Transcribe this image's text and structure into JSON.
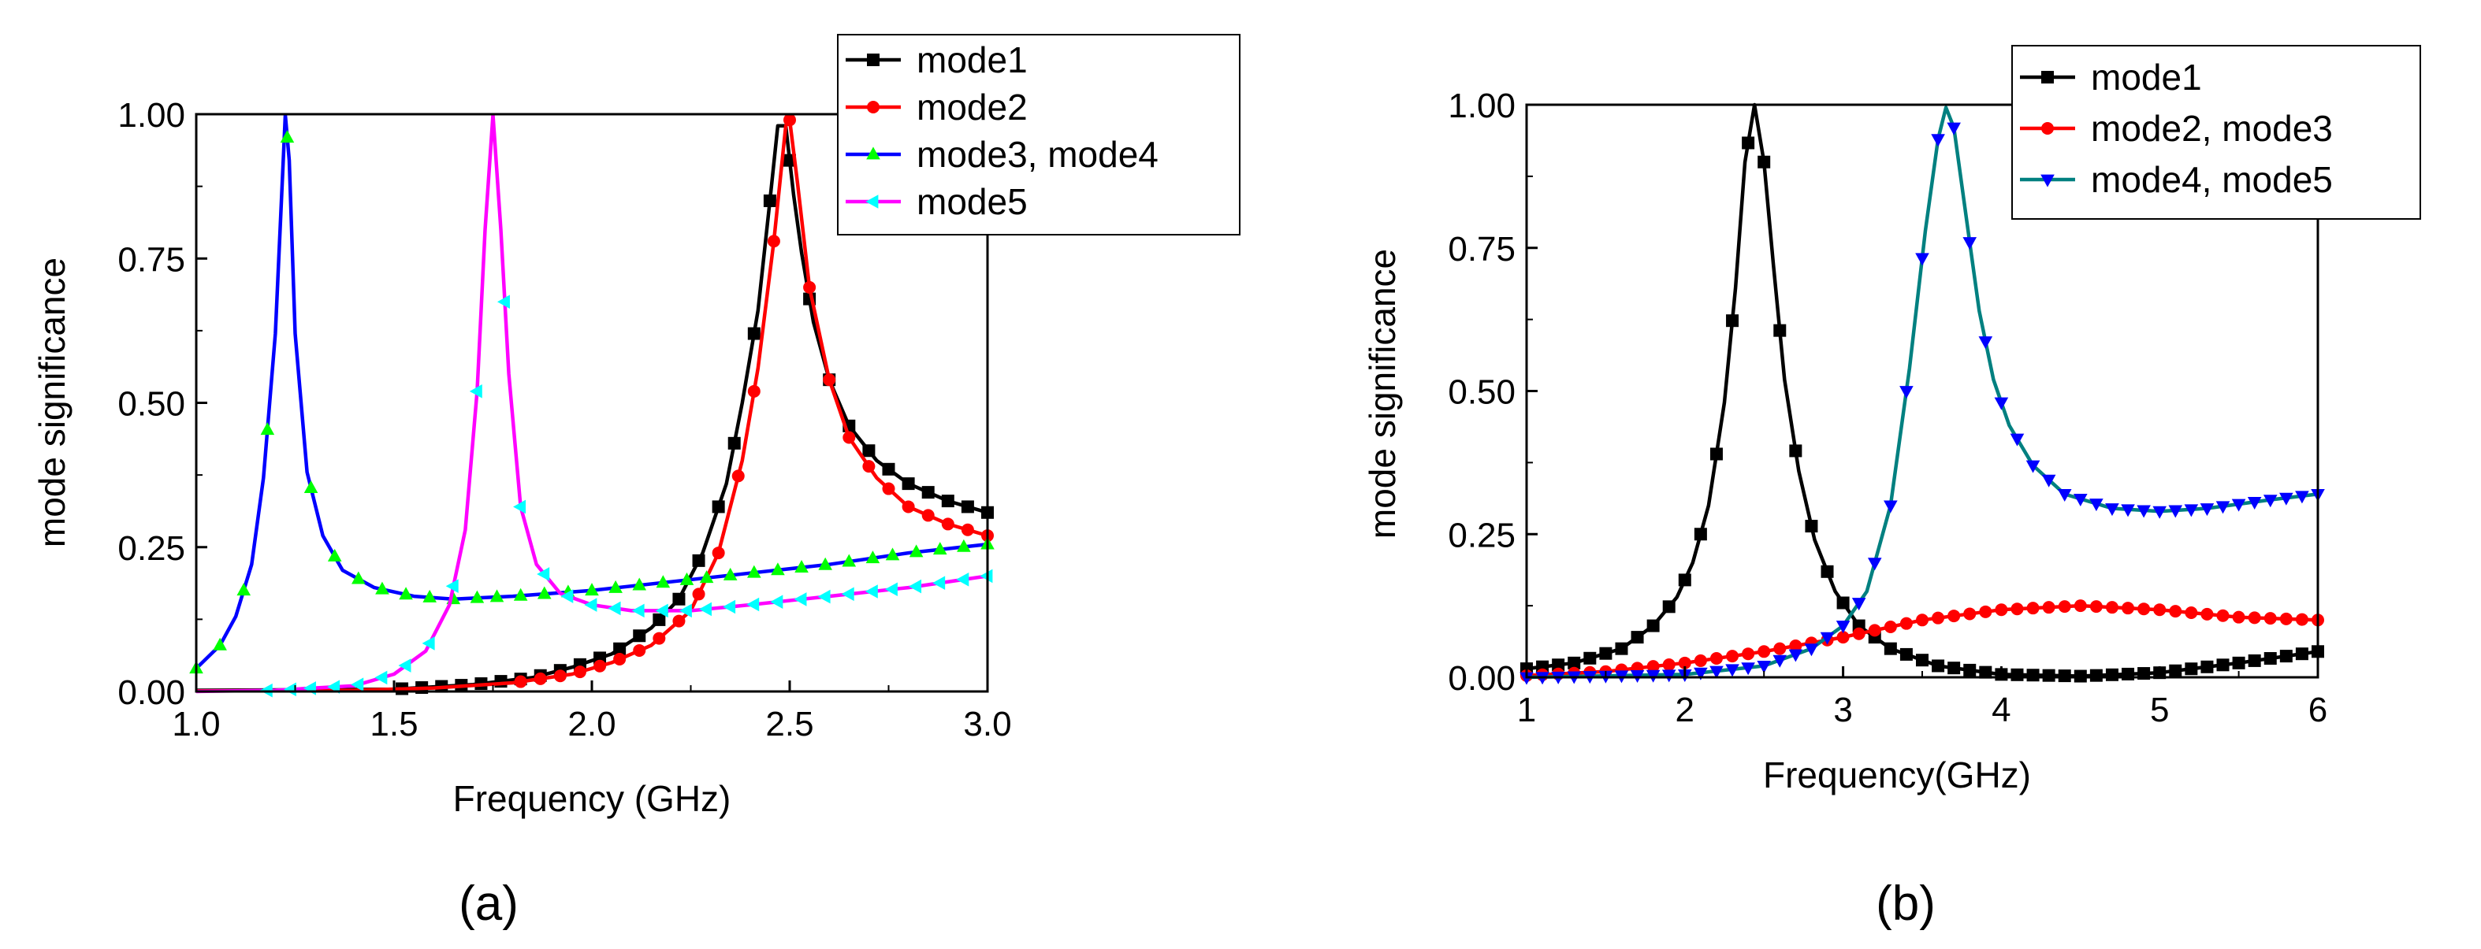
{
  "chart_data": [
    {
      "id": "a",
      "type": "line",
      "caption": "(a)",
      "xlabel": "Frequency (GHz)",
      "ylabel": "mode significance",
      "xlim": [
        1.0,
        3.0
      ],
      "ylim": [
        0.0,
        1.0
      ],
      "xticks": [
        1.0,
        1.5,
        2.0,
        2.5,
        3.0
      ],
      "xtick_labels": [
        "1.0",
        "1.5",
        "2.0",
        "2.5",
        "3.0"
      ],
      "yticks": [
        0.0,
        0.25,
        0.5,
        0.75,
        1.0
      ],
      "ytick_labels": [
        "0.00",
        "0.25",
        "0.50",
        "0.75",
        "1.00"
      ],
      "legend_position": "top-right-outside",
      "series": [
        {
          "name": "mode1",
          "line_color": "#000000",
          "marker": "square",
          "marker_color": "#000000",
          "points": [
            [
              1.0,
              0.002
            ],
            [
              1.3,
              0.003
            ],
            [
              1.5,
              0.004
            ],
            [
              1.7,
              0.012
            ],
            [
              1.85,
              0.024
            ],
            [
              1.95,
              0.042
            ],
            [
              2.05,
              0.065
            ],
            [
              2.15,
              0.11
            ],
            [
              2.22,
              0.16
            ],
            [
              2.28,
              0.24
            ],
            [
              2.34,
              0.36
            ],
            [
              2.38,
              0.5
            ],
            [
              2.42,
              0.66
            ],
            [
              2.45,
              0.85
            ],
            [
              2.47,
              0.98
            ],
            [
              2.49,
              0.98
            ],
            [
              2.51,
              0.86
            ],
            [
              2.53,
              0.76
            ],
            [
              2.56,
              0.64
            ],
            [
              2.6,
              0.54
            ],
            [
              2.65,
              0.46
            ],
            [
              2.72,
              0.4
            ],
            [
              2.8,
              0.36
            ],
            [
              2.9,
              0.33
            ],
            [
              3.0,
              0.31
            ]
          ],
          "marker_x": [
            1.52,
            1.57,
            1.62,
            1.67,
            1.72,
            1.77,
            1.82,
            1.87,
            1.92,
            1.97,
            2.02,
            2.07,
            2.12,
            2.17,
            2.22,
            2.27,
            2.32,
            2.36,
            2.41,
            2.45,
            2.5,
            2.55,
            2.6,
            2.65,
            2.7,
            2.75,
            2.8,
            2.85,
            2.9,
            2.95,
            3.0
          ]
        },
        {
          "name": "mode2",
          "line_color": "#ff0000",
          "marker": "circle",
          "marker_color": "#ff0000",
          "points": [
            [
              1.0,
              0.001
            ],
            [
              1.4,
              0.002
            ],
            [
              1.6,
              0.006
            ],
            [
              1.8,
              0.015
            ],
            [
              1.95,
              0.03
            ],
            [
              2.05,
              0.05
            ],
            [
              2.15,
              0.08
            ],
            [
              2.25,
              0.14
            ],
            [
              2.32,
              0.24
            ],
            [
              2.38,
              0.4
            ],
            [
              2.42,
              0.56
            ],
            [
              2.46,
              0.78
            ],
            [
              2.49,
              0.98
            ],
            [
              2.5,
              0.99
            ],
            [
              2.52,
              0.88
            ],
            [
              2.55,
              0.7
            ],
            [
              2.6,
              0.54
            ],
            [
              2.65,
              0.44
            ],
            [
              2.72,
              0.37
            ],
            [
              2.8,
              0.32
            ],
            [
              2.9,
              0.29
            ],
            [
              3.0,
              0.27
            ]
          ],
          "marker_x": [
            1.82,
            1.87,
            1.92,
            1.97,
            2.02,
            2.07,
            2.12,
            2.17,
            2.22,
            2.27,
            2.32,
            2.37,
            2.41,
            2.46,
            2.5,
            2.55,
            2.6,
            2.65,
            2.7,
            2.75,
            2.8,
            2.85,
            2.9,
            2.95,
            3.0
          ]
        },
        {
          "name": "mode3, mode4",
          "line_color": "#0000ff",
          "marker": "triangle-up",
          "marker_color": "#00ff00",
          "points": [
            [
              1.0,
              0.04
            ],
            [
              1.06,
              0.08
            ],
            [
              1.1,
              0.13
            ],
            [
              1.14,
              0.22
            ],
            [
              1.17,
              0.37
            ],
            [
              1.2,
              0.62
            ],
            [
              1.22,
              0.92
            ],
            [
              1.225,
              0.999
            ],
            [
              1.235,
              0.92
            ],
            [
              1.25,
              0.62
            ],
            [
              1.28,
              0.38
            ],
            [
              1.32,
              0.27
            ],
            [
              1.37,
              0.21
            ],
            [
              1.45,
              0.18
            ],
            [
              1.55,
              0.165
            ],
            [
              1.65,
              0.16
            ],
            [
              1.8,
              0.165
            ],
            [
              2.0,
              0.175
            ],
            [
              2.2,
              0.19
            ],
            [
              2.4,
              0.205
            ],
            [
              2.6,
              0.22
            ],
            [
              2.8,
              0.24
            ],
            [
              3.0,
              0.255
            ]
          ],
          "marker_x": [
            1.0,
            1.06,
            1.12,
            1.18,
            1.23,
            1.29,
            1.35,
            1.41,
            1.47,
            1.53,
            1.59,
            1.65,
            1.71,
            1.76,
            1.82,
            1.88,
            1.94,
            2.0,
            2.06,
            2.12,
            2.18,
            2.24,
            2.29,
            2.35,
            2.41,
            2.47,
            2.53,
            2.59,
            2.65,
            2.71,
            2.76,
            2.82,
            2.88,
            2.94,
            3.0
          ]
        },
        {
          "name": "mode5",
          "line_color": "#ff00ff",
          "marker": "triangle-left",
          "marker_color": "#00ffff",
          "points": [
            [
              1.0,
              0.0
            ],
            [
              1.2,
              0.002
            ],
            [
              1.4,
              0.01
            ],
            [
              1.5,
              0.03
            ],
            [
              1.58,
              0.07
            ],
            [
              1.64,
              0.15
            ],
            [
              1.68,
              0.28
            ],
            [
              1.71,
              0.52
            ],
            [
              1.73,
              0.8
            ],
            [
              1.75,
              0.999
            ],
            [
              1.77,
              0.8
            ],
            [
              1.79,
              0.55
            ],
            [
              1.82,
              0.32
            ],
            [
              1.86,
              0.22
            ],
            [
              1.92,
              0.17
            ],
            [
              2.0,
              0.15
            ],
            [
              2.1,
              0.14
            ],
            [
              2.25,
              0.14
            ],
            [
              2.4,
              0.15
            ],
            [
              2.6,
              0.165
            ],
            [
              2.8,
              0.18
            ],
            [
              3.0,
              0.2
            ]
          ],
          "marker_x": [
            1.18,
            1.24,
            1.29,
            1.35,
            1.41,
            1.47,
            1.53,
            1.59,
            1.65,
            1.71,
            1.78,
            1.82,
            1.88,
            1.94,
            2.0,
            2.06,
            2.12,
            2.18,
            2.24,
            2.29,
            2.35,
            2.41,
            2.47,
            2.53,
            2.59,
            2.65,
            2.71,
            2.76,
            2.82,
            2.88,
            2.94,
            3.0
          ]
        }
      ]
    },
    {
      "id": "b",
      "type": "line",
      "caption": "(b)",
      "xlabel": "Frequency(GHz)",
      "ylabel": "mode significance",
      "xlim": [
        1,
        6
      ],
      "ylim": [
        0.0,
        1.0
      ],
      "xticks": [
        1,
        2,
        3,
        4,
        5,
        6
      ],
      "xtick_labels": [
        "1",
        "2",
        "3",
        "4",
        "5",
        "6"
      ],
      "yticks": [
        0.0,
        0.25,
        0.5,
        0.75,
        1.0
      ],
      "ytick_labels": [
        "0.00",
        "0.25",
        "0.50",
        "0.75",
        "1.00"
      ],
      "legend_position": "top-right",
      "series": [
        {
          "name": "mode1",
          "line_color": "#000000",
          "marker": "square",
          "marker_color": "#000000",
          "points": [
            [
              1.0,
              0.015
            ],
            [
              1.3,
              0.025
            ],
            [
              1.6,
              0.05
            ],
            [
              1.8,
              0.09
            ],
            [
              1.95,
              0.14
            ],
            [
              2.05,
              0.2
            ],
            [
              2.15,
              0.3
            ],
            [
              2.25,
              0.48
            ],
            [
              2.32,
              0.68
            ],
            [
              2.38,
              0.9
            ],
            [
              2.44,
              1.0
            ],
            [
              2.5,
              0.9
            ],
            [
              2.56,
              0.72
            ],
            [
              2.63,
              0.52
            ],
            [
              2.72,
              0.36
            ],
            [
              2.82,
              0.24
            ],
            [
              2.95,
              0.15
            ],
            [
              3.1,
              0.09
            ],
            [
              3.3,
              0.05
            ],
            [
              3.6,
              0.02
            ],
            [
              4.0,
              0.005
            ],
            [
              4.5,
              0.002
            ],
            [
              5.0,
              0.008
            ],
            [
              5.5,
              0.025
            ],
            [
              6.0,
              0.045
            ]
          ],
          "marker_x": [
            1.0,
            1.1,
            1.2,
            1.3,
            1.4,
            1.5,
            1.6,
            1.7,
            1.8,
            1.9,
            2.0,
            2.1,
            2.2,
            2.3,
            2.4,
            2.5,
            2.6,
            2.7,
            2.8,
            2.9,
            3.0,
            3.1,
            3.2,
            3.3,
            3.4,
            3.5,
            3.6,
            3.7,
            3.8,
            3.9,
            4.0,
            4.1,
            4.2,
            4.3,
            4.4,
            4.5,
            4.6,
            4.7,
            4.8,
            4.9,
            5.0,
            5.1,
            5.2,
            5.3,
            5.4,
            5.5,
            5.6,
            5.7,
            5.8,
            5.9,
            6.0
          ]
        },
        {
          "name": "mode2, mode3",
          "line_color": "#ff0000",
          "marker": "circle",
          "marker_color": "#ff0000",
          "points": [
            [
              1.0,
              0.003
            ],
            [
              1.5,
              0.01
            ],
            [
              2.0,
              0.025
            ],
            [
              2.5,
              0.045
            ],
            [
              3.0,
              0.07
            ],
            [
              3.5,
              0.1
            ],
            [
              4.0,
              0.118
            ],
            [
              4.5,
              0.125
            ],
            [
              5.0,
              0.118
            ],
            [
              5.5,
              0.105
            ],
            [
              6.0,
              0.1
            ]
          ],
          "marker_x": [
            1.0,
            1.1,
            1.2,
            1.3,
            1.4,
            1.5,
            1.6,
            1.7,
            1.8,
            1.9,
            2.0,
            2.1,
            2.2,
            2.3,
            2.4,
            2.5,
            2.6,
            2.7,
            2.8,
            2.9,
            3.0,
            3.1,
            3.2,
            3.3,
            3.4,
            3.5,
            3.6,
            3.7,
            3.8,
            3.9,
            4.0,
            4.1,
            4.2,
            4.3,
            4.4,
            4.5,
            4.6,
            4.7,
            4.8,
            4.9,
            5.0,
            5.1,
            5.2,
            5.3,
            5.4,
            5.5,
            5.6,
            5.7,
            5.8,
            5.9,
            6.0
          ]
        },
        {
          "name": "mode4, mode5",
          "line_color": "#008080",
          "marker": "triangle-down",
          "marker_color": "#0000ff",
          "points": [
            [
              1.0,
              0.0
            ],
            [
              2.0,
              0.005
            ],
            [
              2.5,
              0.02
            ],
            [
              2.8,
              0.05
            ],
            [
              3.0,
              0.09
            ],
            [
              3.15,
              0.15
            ],
            [
              3.3,
              0.3
            ],
            [
              3.42,
              0.54
            ],
            [
              3.52,
              0.78
            ],
            [
              3.6,
              0.94
            ],
            [
              3.65,
              0.995
            ],
            [
              3.7,
              0.96
            ],
            [
              3.78,
              0.8
            ],
            [
              3.86,
              0.64
            ],
            [
              3.95,
              0.52
            ],
            [
              4.05,
              0.44
            ],
            [
              4.2,
              0.37
            ],
            [
              4.4,
              0.32
            ],
            [
              4.7,
              0.295
            ],
            [
              5.0,
              0.29
            ],
            [
              5.3,
              0.295
            ],
            [
              5.7,
              0.31
            ],
            [
              6.0,
              0.32
            ]
          ],
          "marker_x": [
            1.0,
            1.1,
            1.2,
            1.3,
            1.4,
            1.5,
            1.6,
            1.7,
            1.8,
            1.9,
            2.0,
            2.1,
            2.2,
            2.3,
            2.4,
            2.5,
            2.6,
            2.7,
            2.8,
            2.9,
            3.0,
            3.1,
            3.2,
            3.3,
            3.4,
            3.5,
            3.6,
            3.7,
            3.8,
            3.9,
            4.0,
            4.1,
            4.2,
            4.3,
            4.4,
            4.5,
            4.6,
            4.7,
            4.8,
            4.9,
            5.0,
            5.1,
            5.2,
            5.3,
            5.4,
            5.5,
            5.6,
            5.7,
            5.8,
            5.9,
            6.0
          ]
        }
      ]
    }
  ]
}
